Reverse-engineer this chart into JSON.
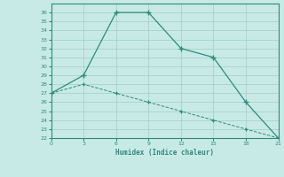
{
  "xlabel": "Humidex (Indice chaleur)",
  "x": [
    0,
    3,
    6,
    9,
    12,
    15,
    18,
    21
  ],
  "line1_y": [
    27,
    29,
    36,
    36,
    32,
    31,
    26,
    22
  ],
  "line2_y": [
    27,
    28,
    27,
    26,
    25,
    24,
    23,
    22
  ],
  "line_color": "#2e8b7a",
  "bg_color": "#c8eae6",
  "grid_color": "#a0cdc8",
  "ylim_min": 22,
  "ylim_max": 37,
  "xlim_min": 0,
  "xlim_max": 21,
  "xticks": [
    0,
    3,
    6,
    9,
    12,
    15,
    18,
    21
  ],
  "yticks": [
    22,
    23,
    24,
    25,
    26,
    27,
    28,
    29,
    30,
    31,
    32,
    33,
    34,
    35,
    36
  ]
}
